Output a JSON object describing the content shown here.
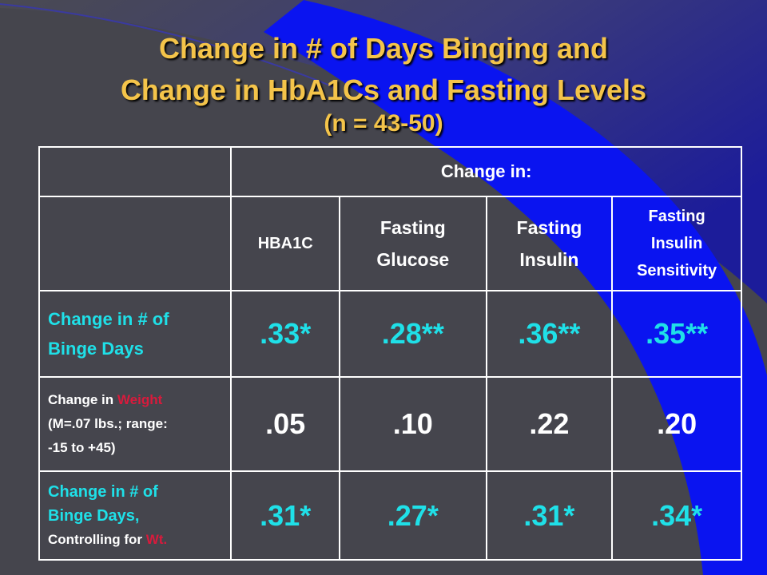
{
  "title": {
    "line1": "Change in # of Days Binging and",
    "line2": "Change in HbA1Cs and Fasting Levels",
    "line3": "(n = 43-50)"
  },
  "table": {
    "group_header": "Change in:",
    "columns": [
      {
        "line1": "HBA1C",
        "line2": "",
        "line3": ""
      },
      {
        "line1": "Fasting",
        "line2": "Glucose",
        "line3": ""
      },
      {
        "line1": "Fasting",
        "line2": "Insulin",
        "line3": ""
      },
      {
        "line1": "Fasting",
        "line2": "Insulin",
        "line3": "Sensitivity"
      }
    ],
    "rows": [
      {
        "label_line1": "Change in # of",
        "label_line2": "Binge Days",
        "values": [
          ".33*",
          ".28**",
          ".36**",
          ".35**"
        ]
      },
      {
        "label_prefix": "Change in ",
        "label_highlight": "Weight",
        "label_line2": "(M=.07 lbs.; range:",
        "label_line3": "-15 to +45)",
        "values": [
          ".05",
          ".10",
          ".22",
          ".20"
        ]
      },
      {
        "label_line1": "Change in # of",
        "label_line2": "Binge Days,",
        "label_line3_prefix": "Controlling for ",
        "label_line3_highlight": "Wt.",
        "values": [
          ".31*",
          ".27*",
          ".31*",
          ".34*"
        ]
      }
    ]
  },
  "colors": {
    "title": "#f4c44a",
    "cyan_text": "#1fe0e8",
    "highlight_red": "#d81a3c",
    "swoosh_blue": "#0a14f0",
    "background": "#45454d"
  }
}
